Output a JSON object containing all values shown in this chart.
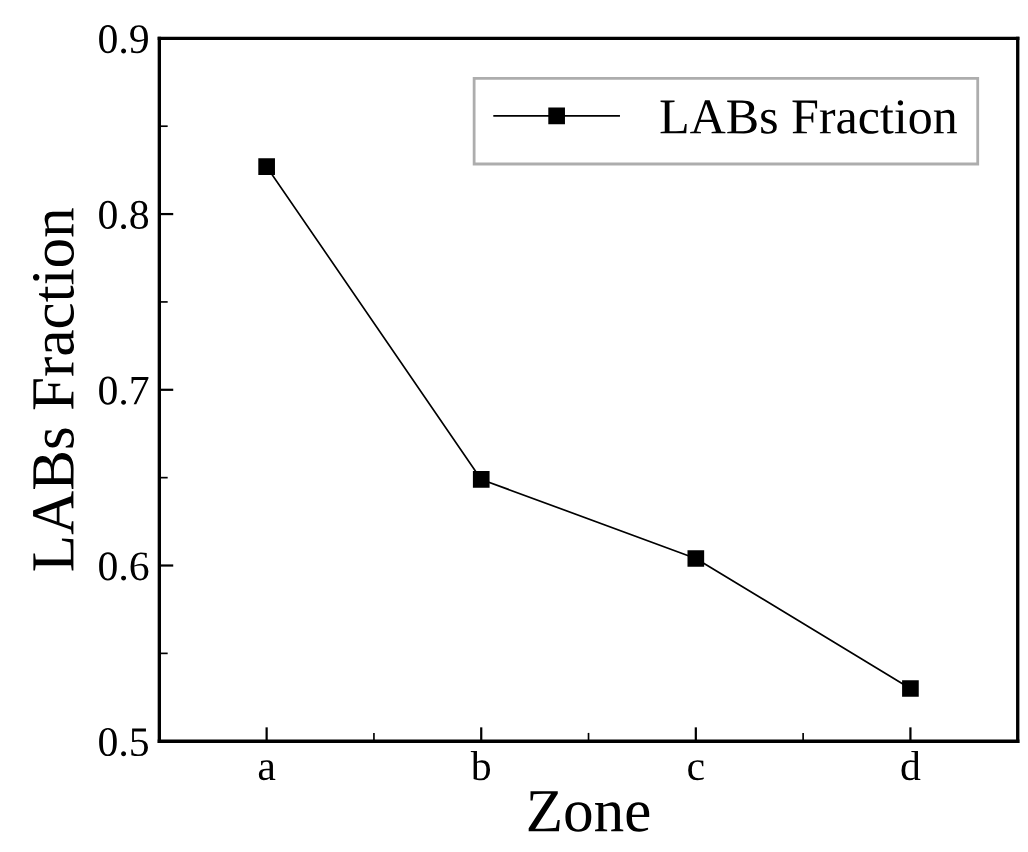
{
  "chart_data": {
    "type": "line",
    "xlabel": "Zone",
    "ylabel": "LABs Fraction",
    "categories": [
      "a",
      "b",
      "c",
      "d"
    ],
    "series": [
      {
        "name": "LABs Fraction",
        "color": "#000000",
        "values": [
          0.827,
          0.649,
          0.604,
          0.53
        ]
      }
    ],
    "ylim": [
      0.5,
      0.9
    ],
    "yticks": [
      0.5,
      0.6,
      0.7,
      0.8,
      0.9
    ],
    "marker": "square",
    "line_style": "solid",
    "legend": "top right",
    "grid": false
  }
}
